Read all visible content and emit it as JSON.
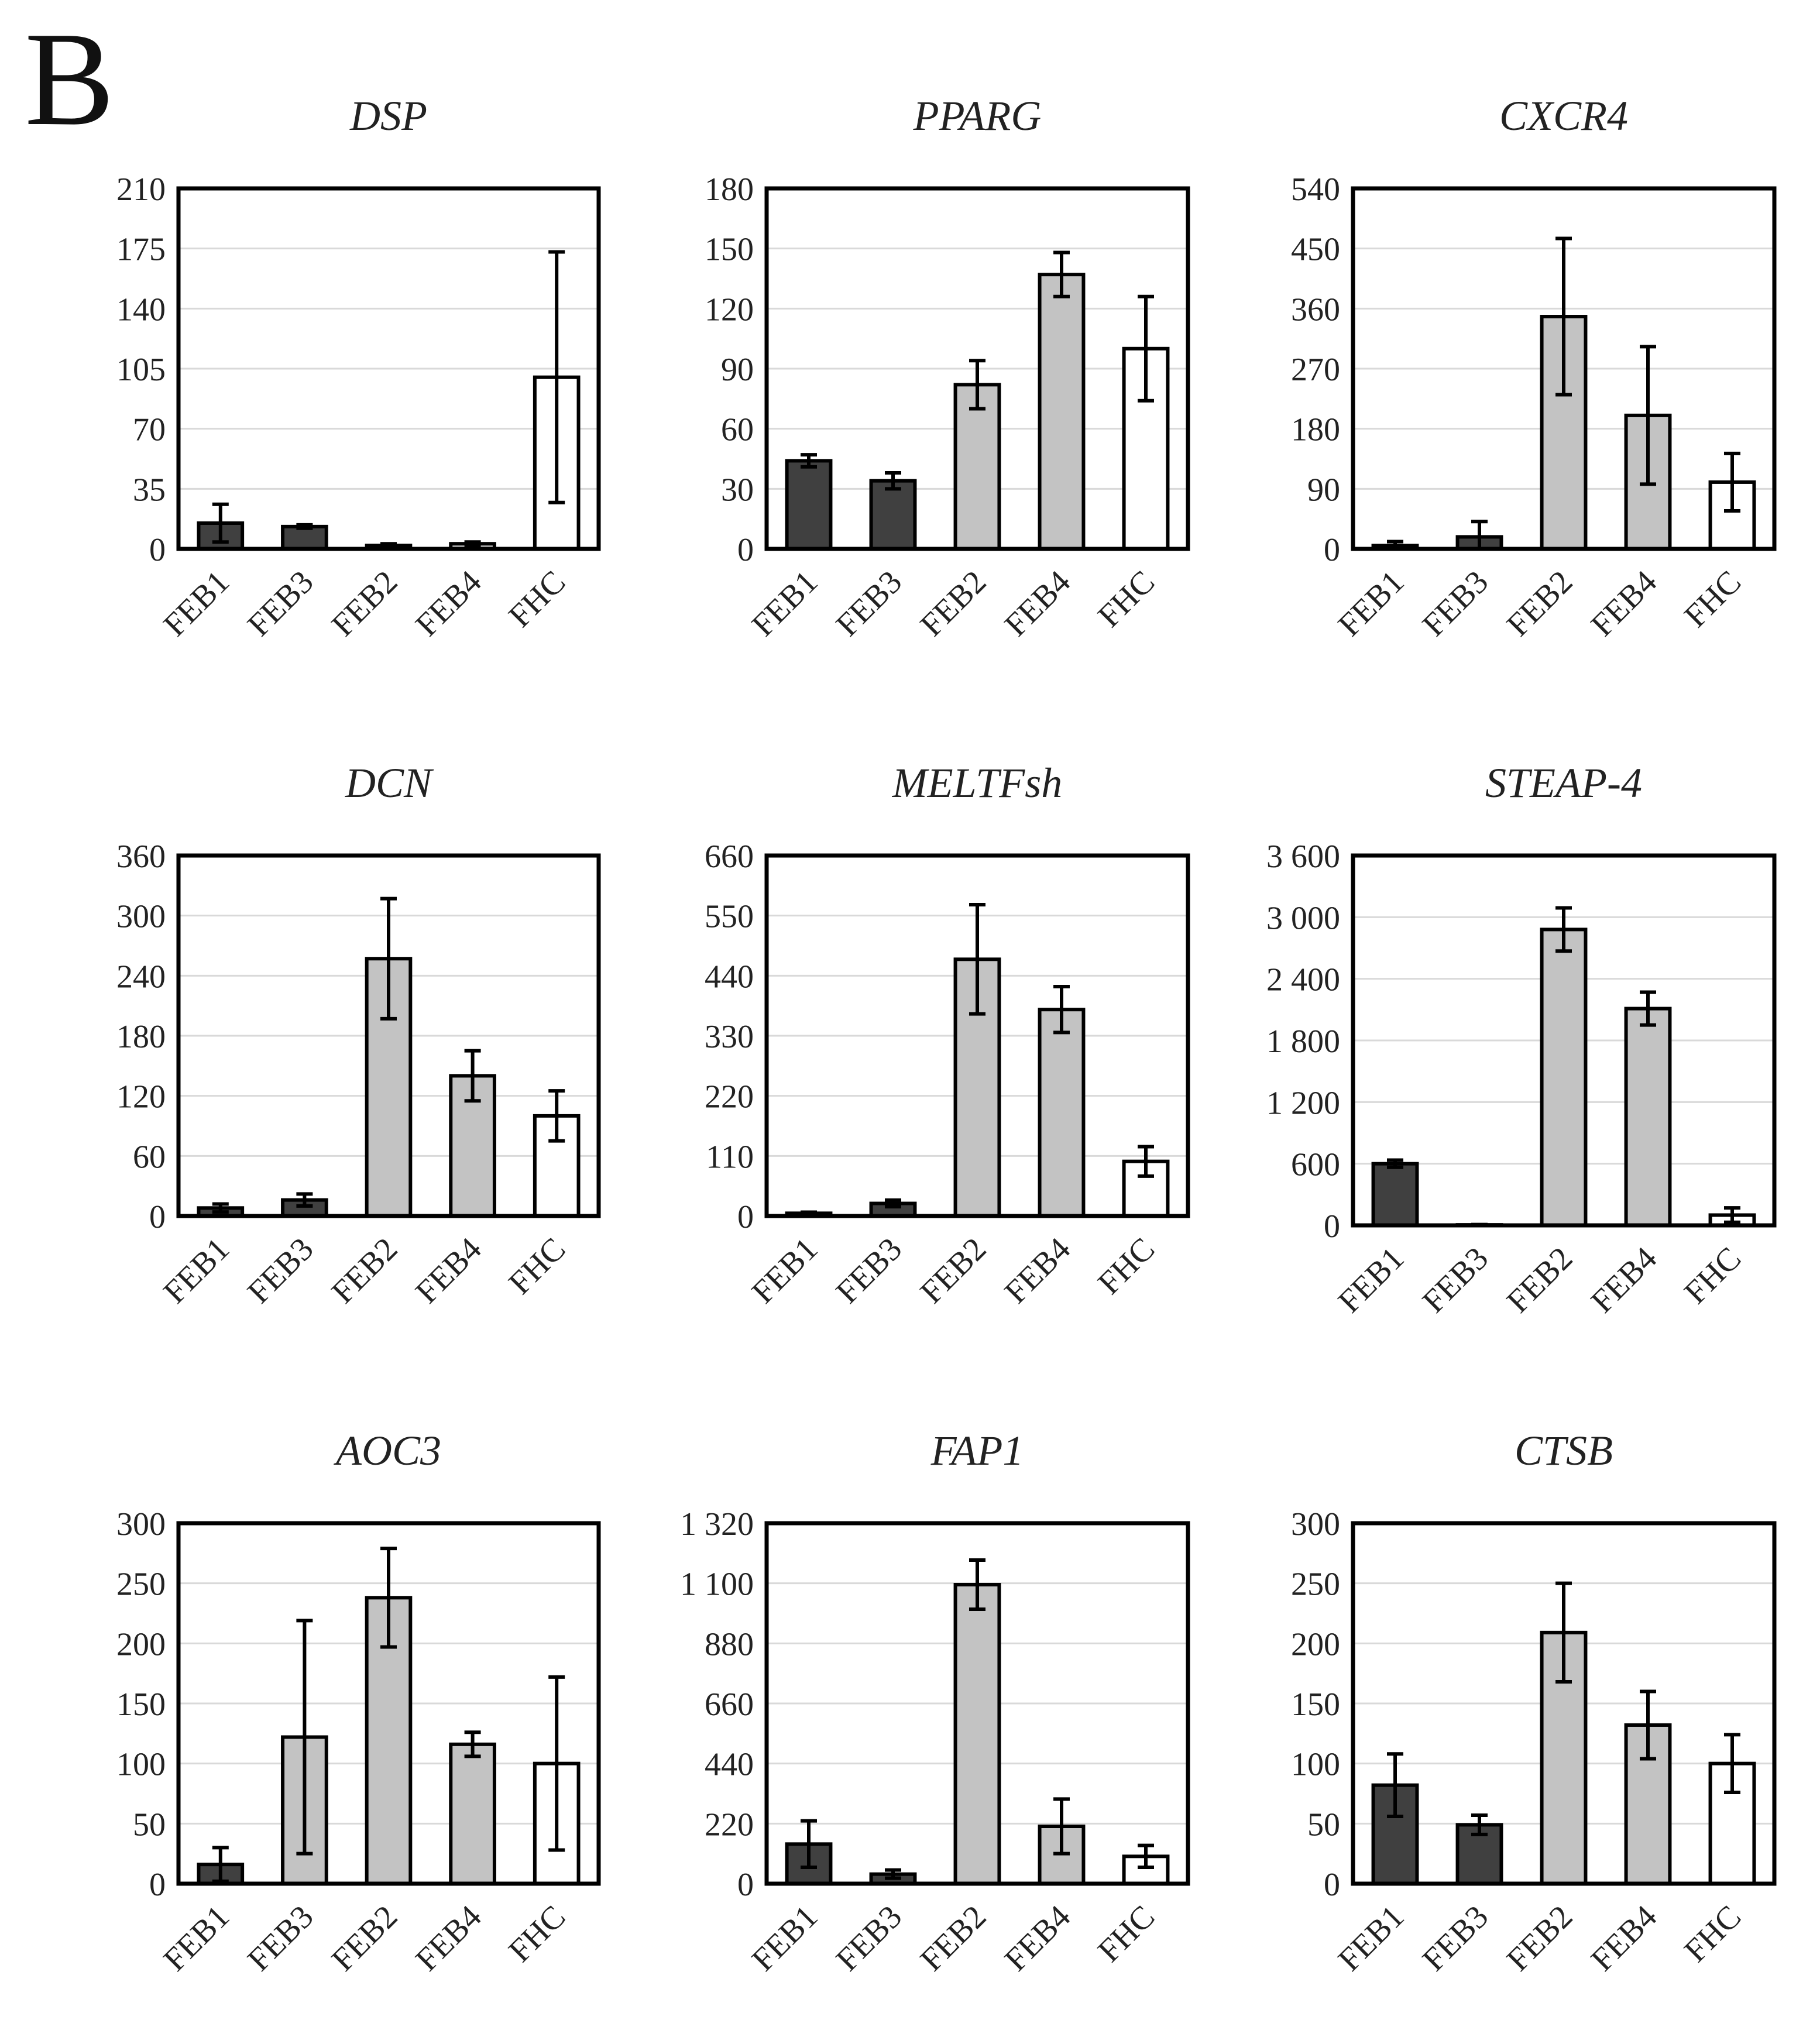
{
  "panel_label": "B",
  "colors": {
    "dark": "#404040",
    "gray": "#c3c3c3",
    "white": "#ffffff",
    "frame": "#000000",
    "grid": "#d9d9d9"
  },
  "chart_data": [
    {
      "type": "bar",
      "title": "DSP",
      "categories": [
        "FEB1",
        "FEB3",
        "FEB2",
        "FEB4",
        "FHC"
      ],
      "values": [
        15,
        13,
        2,
        3,
        100
      ],
      "errors": [
        11,
        1,
        1,
        1,
        73
      ],
      "fills": [
        "dark",
        "dark",
        "gray",
        "gray",
        "white"
      ],
      "ylim": [
        0,
        210
      ],
      "yticks": [
        0,
        35,
        70,
        105,
        140,
        175,
        210
      ],
      "ytick_labels": [
        "0",
        "35",
        "70",
        "105",
        "140",
        "175",
        "210"
      ],
      "grid": true
    },
    {
      "type": "bar",
      "title": "PPARG",
      "categories": [
        "FEB1",
        "FEB3",
        "FEB2",
        "FEB4",
        "FHC"
      ],
      "values": [
        44,
        34,
        82,
        137,
        100
      ],
      "errors": [
        3,
        4,
        12,
        11,
        26
      ],
      "fills": [
        "dark",
        "dark",
        "gray",
        "gray",
        "white"
      ],
      "ylim": [
        0,
        180
      ],
      "yticks": [
        0,
        30,
        60,
        90,
        120,
        150,
        180
      ],
      "ytick_labels": [
        "0",
        "30",
        "60",
        "90",
        "120",
        "150",
        "180"
      ],
      "grid": true
    },
    {
      "type": "bar",
      "title": "CXCR4",
      "categories": [
        "FEB1",
        "FEB3",
        "FEB2",
        "FEB4",
        "FHC"
      ],
      "values": [
        5,
        18,
        348,
        200,
        100
      ],
      "errors": [
        6,
        23,
        117,
        103,
        43
      ],
      "fills": [
        "dark",
        "dark",
        "gray",
        "gray",
        "white"
      ],
      "ylim": [
        0,
        540
      ],
      "yticks": [
        0,
        90,
        180,
        270,
        360,
        450,
        540
      ],
      "ytick_labels": [
        "0",
        "90",
        "180",
        "270",
        "360",
        "450",
        "540"
      ],
      "grid": true
    },
    {
      "type": "bar",
      "title": "DCN",
      "categories": [
        "FEB1",
        "FEB3",
        "FEB2",
        "FEB4",
        "FHC"
      ],
      "values": [
        8,
        16,
        257,
        140,
        100
      ],
      "errors": [
        4,
        6,
        60,
        25,
        25
      ],
      "fills": [
        "dark",
        "dark",
        "gray",
        "gray",
        "white"
      ],
      "ylim": [
        0,
        360
      ],
      "yticks": [
        0,
        60,
        120,
        180,
        240,
        300,
        360
      ],
      "ytick_labels": [
        "0",
        "60",
        "120",
        "180",
        "240",
        "300",
        "360"
      ],
      "grid": true
    },
    {
      "type": "bar",
      "title": "MELTFsh",
      "categories": [
        "FEB1",
        "FEB3",
        "FEB2",
        "FEB4",
        "FHC"
      ],
      "values": [
        5,
        23,
        470,
        378,
        100
      ],
      "errors": [
        2,
        6,
        100,
        42,
        27
      ],
      "fills": [
        "dark",
        "dark",
        "gray",
        "gray",
        "white"
      ],
      "ylim": [
        0,
        660
      ],
      "yticks": [
        0,
        110,
        220,
        330,
        440,
        550,
        660
      ],
      "ytick_labels": [
        "0",
        "110",
        "220",
        "330",
        "440",
        "550",
        "660"
      ],
      "grid": true
    },
    {
      "type": "bar",
      "title": "STEAP-4",
      "categories": [
        "FEB1",
        "FEB3",
        "FEB2",
        "FEB4",
        "FHC"
      ],
      "values": [
        600,
        5,
        2880,
        2110,
        100
      ],
      "errors": [
        35,
        3,
        210,
        160,
        70
      ],
      "fills": [
        "dark",
        "dark",
        "gray",
        "gray",
        "white"
      ],
      "ylim": [
        0,
        3600
      ],
      "yticks": [
        0,
        600,
        1200,
        1800,
        2400,
        3000,
        3600
      ],
      "ytick_labels": [
        "0",
        "600",
        "1 200",
        "1 800",
        "2 400",
        "3 000",
        "3 600"
      ],
      "grid": true
    },
    {
      "type": "bar",
      "title": "AOC3",
      "categories": [
        "FEB1",
        "FEB3",
        "FEB2",
        "FEB4",
        "FHC"
      ],
      "values": [
        16,
        122,
        238,
        116,
        100
      ],
      "errors": [
        14,
        97,
        41,
        10,
        72
      ],
      "fills": [
        "dark",
        "gray",
        "gray",
        "gray",
        "white"
      ],
      "ylim": [
        0,
        300
      ],
      "yticks": [
        0,
        50,
        100,
        150,
        200,
        250,
        300
      ],
      "ytick_labels": [
        "0",
        "50",
        "100",
        "150",
        "200",
        "250",
        "300"
      ],
      "grid": true
    },
    {
      "type": "bar",
      "title": "FAP1",
      "categories": [
        "FEB1",
        "FEB3",
        "FEB2",
        "FEB4",
        "FHC"
      ],
      "values": [
        145,
        35,
        1095,
        210,
        100
      ],
      "errors": [
        85,
        15,
        90,
        100,
        40
      ],
      "fills": [
        "dark",
        "dark",
        "gray",
        "gray",
        "white"
      ],
      "ylim": [
        0,
        1320
      ],
      "yticks": [
        0,
        220,
        440,
        660,
        880,
        1100,
        1320
      ],
      "ytick_labels": [
        "0",
        "220",
        "440",
        "660",
        "880",
        "1 100",
        "1 320"
      ],
      "grid": true
    },
    {
      "type": "bar",
      "title": "CTSB",
      "categories": [
        "FEB1",
        "FEB3",
        "FEB2",
        "FEB4",
        "FHC"
      ],
      "values": [
        82,
        49,
        209,
        132,
        100
      ],
      "errors": [
        26,
        8,
        41,
        28,
        24
      ],
      "fills": [
        "dark",
        "dark",
        "gray",
        "gray",
        "white"
      ],
      "ylim": [
        0,
        300
      ],
      "yticks": [
        0,
        50,
        100,
        150,
        200,
        250,
        300
      ],
      "ytick_labels": [
        "0",
        "50",
        "100",
        "150",
        "200",
        "250",
        "300"
      ],
      "grid": true
    }
  ]
}
